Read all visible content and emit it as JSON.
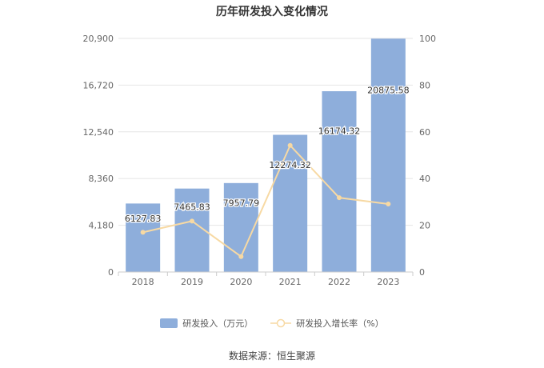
{
  "chart_data": {
    "type": "bar",
    "title": "历年研发投入变化情况",
    "categories": [
      "2018",
      "2019",
      "2020",
      "2021",
      "2022",
      "2023"
    ],
    "series": [
      {
        "name": "研发投入（万元）",
        "type": "bar",
        "axis": "left",
        "values": [
          6127.83,
          7465.83,
          7957.79,
          12274.32,
          16174.32,
          20875.58
        ],
        "labels": [
          "6127.83",
          "7465.83",
          "7957.79",
          "12274.32",
          "16174.32",
          "20875.58"
        ],
        "color": "#8eaedb"
      },
      {
        "name": "研发投入增长率（%）",
        "type": "line",
        "axis": "right",
        "values": [
          17,
          21.8,
          6.6,
          54.2,
          31.8,
          29.1
        ],
        "color": "#f7d9a3"
      }
    ],
    "left_axis": {
      "ticks": [
        "0",
        "4,180",
        "8,360",
        "12,540",
        "16,720",
        "20,900"
      ],
      "range": [
        0,
        20900
      ]
    },
    "right_axis": {
      "ticks": [
        "0",
        "20",
        "40",
        "60",
        "80",
        "100"
      ],
      "range": [
        0,
        100
      ]
    },
    "grid": true,
    "legend_position": "bottom-center"
  },
  "source": "数据来源：恒生聚源"
}
